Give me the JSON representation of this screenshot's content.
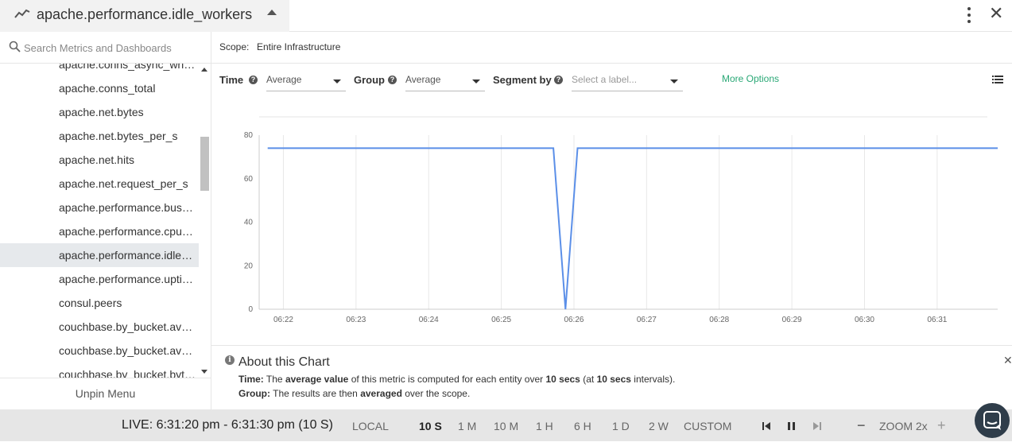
{
  "header": {
    "title": "apache.performance.idle_workers"
  },
  "sidebar": {
    "search_placeholder": "Search Metrics and Dashboards",
    "items": [
      "apache.conns_async_writing",
      "apache.conns_total",
      "apache.net.bytes",
      "apache.net.bytes_per_s",
      "apache.net.hits",
      "apache.net.request_per_s",
      "apache.performance.busy_workers",
      "apache.performance.cpu_load",
      "apache.performance.idle_workers",
      "apache.performance.uptime",
      "consul.peers",
      "couchbase.by_bucket.avg_bg_wait_time",
      "couchbase.by_bucket.avg_disk_commit_time",
      "couchbase.by_bucket.bytes_read"
    ],
    "active_index": 8,
    "unpin_label": "Unpin Menu"
  },
  "scope": {
    "label": "Scope:",
    "value": "Entire Infrastructure"
  },
  "controls": {
    "time_label": "Time",
    "time_value": "Average",
    "group_label": "Group",
    "group_value": "Average",
    "segment_label": "Segment by",
    "segment_placeholder": "Select a label...",
    "more_options": "More Options"
  },
  "chart_data": {
    "type": "line",
    "x": [
      "06:21:47",
      "06:25:43",
      "06:25:53",
      "06:26:03",
      "06:31:50"
    ],
    "values": [
      74,
      74,
      0,
      74,
      74
    ],
    "xticks": [
      "06:22",
      "06:23",
      "06:24",
      "06:25",
      "06:26",
      "06:27",
      "06:28",
      "06:29",
      "06:30",
      "06:31"
    ],
    "yticks": [
      0,
      20,
      40,
      60,
      80
    ],
    "ylim": [
      0,
      80
    ],
    "xlim": [
      "06:21:40",
      "06:31:50"
    ],
    "grid": true,
    "color": "#5b8fe8"
  },
  "about": {
    "title": "About this Chart",
    "time_prefix": "Time:",
    "time_text_1": "The",
    "time_bold_1": "average value",
    "time_text_2": "of this metric is computed for each entity over",
    "time_bold_2": "10 secs",
    "time_text_3": "(at",
    "time_bold_3": "10 secs",
    "time_text_4": "intervals).",
    "group_prefix": "Group:",
    "group_text_1": "The results are then",
    "group_bold_1": "averaged",
    "group_text_2": "over the scope."
  },
  "footer": {
    "live": "LIVE: 6:31:20 pm - 6:31:30 pm (10 S)",
    "timezone": "LOCAL",
    "timeframes": [
      "10 S",
      "1 M",
      "10 M",
      "1 H",
      "6 H",
      "1 D",
      "2 W",
      "CUSTOM"
    ],
    "active_timeframe": "10 S",
    "zoom_label": "ZOOM 2x"
  }
}
